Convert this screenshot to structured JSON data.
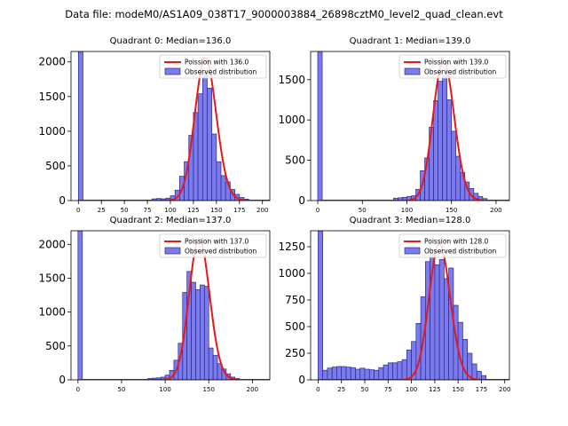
{
  "figure": {
    "title": "Data file: modeM0/AS1A09_038T17_9000003884_26898cztM0_level2_quad_clean.evt"
  },
  "colors": {
    "bar_fill": "#7b7bee",
    "bar_edge": "#2a2a8a",
    "poisson_line": "#e81818",
    "axis": "#000000"
  },
  "chart_data": [
    {
      "type": "bar",
      "title": "Quadrant 0: Median=136.0",
      "median": 136.0,
      "xlim": [
        -8,
        208
      ],
      "ylim": [
        0,
        2150
      ],
      "xticks": [
        0,
        25,
        50,
        75,
        100,
        125,
        150,
        175,
        200
      ],
      "yticks": [
        0,
        500,
        1000,
        1500,
        2000
      ],
      "bin_width": 5,
      "legend": {
        "line_label": "Poission with 136.0",
        "bar_label": "Observed distribution",
        "position": "upper-right"
      },
      "bins": [
        {
          "x": 0,
          "count": 2150
        },
        {
          "x": 80,
          "count": 25
        },
        {
          "x": 85,
          "count": 30
        },
        {
          "x": 90,
          "count": 25
        },
        {
          "x": 95,
          "count": 35
        },
        {
          "x": 100,
          "count": 70
        },
        {
          "x": 105,
          "count": 150
        },
        {
          "x": 110,
          "count": 350
        },
        {
          "x": 115,
          "count": 560
        },
        {
          "x": 120,
          "count": 940
        },
        {
          "x": 125,
          "count": 1270
        },
        {
          "x": 130,
          "count": 1540
        },
        {
          "x": 135,
          "count": 1850
        },
        {
          "x": 140,
          "count": 1620
        },
        {
          "x": 145,
          "count": 960
        },
        {
          "x": 150,
          "count": 560
        },
        {
          "x": 155,
          "count": 360
        },
        {
          "x": 160,
          "count": 270
        },
        {
          "x": 165,
          "count": 160
        },
        {
          "x": 170,
          "count": 90
        },
        {
          "x": 175,
          "count": 45
        },
        {
          "x": 180,
          "count": 20
        }
      ],
      "poisson_peak": 2050
    },
    {
      "type": "bar",
      "title": "Quadrant 1: Median=139.0",
      "median": 139.0,
      "xlim": [
        -8,
        215
      ],
      "ylim": [
        0,
        1850
      ],
      "xticks": [
        0,
        50,
        100,
        150,
        200
      ],
      "yticks": [
        0,
        500,
        1000,
        1500
      ],
      "bin_width": 5,
      "legend": {
        "line_label": "Poission with 139.0",
        "bar_label": "Observed distribution",
        "position": "upper-right"
      },
      "bins": [
        {
          "x": 0,
          "count": 1850
        },
        {
          "x": 85,
          "count": 30
        },
        {
          "x": 90,
          "count": 35
        },
        {
          "x": 95,
          "count": 40
        },
        {
          "x": 100,
          "count": 50
        },
        {
          "x": 105,
          "count": 60
        },
        {
          "x": 110,
          "count": 140
        },
        {
          "x": 115,
          "count": 370
        },
        {
          "x": 120,
          "count": 530
        },
        {
          "x": 125,
          "count": 910
        },
        {
          "x": 130,
          "count": 1240
        },
        {
          "x": 135,
          "count": 1480
        },
        {
          "x": 140,
          "count": 1550
        },
        {
          "x": 145,
          "count": 1250
        },
        {
          "x": 150,
          "count": 860
        },
        {
          "x": 155,
          "count": 550
        },
        {
          "x": 160,
          "count": 350
        },
        {
          "x": 165,
          "count": 230
        },
        {
          "x": 170,
          "count": 150
        },
        {
          "x": 175,
          "count": 90
        },
        {
          "x": 180,
          "count": 50
        },
        {
          "x": 185,
          "count": 25
        }
      ],
      "poisson_peak": 1740
    },
    {
      "type": "bar",
      "title": "Quadrant 2: Median=137.0",
      "median": 137.0,
      "xlim": [
        -8,
        220
      ],
      "ylim": [
        0,
        2200
      ],
      "xticks": [
        0,
        50,
        100,
        150,
        200
      ],
      "yticks": [
        0,
        500,
        1000,
        1500,
        2000
      ],
      "bin_width": 5,
      "legend": {
        "line_label": "Poission with 137.0",
        "bar_label": "Observed distribution",
        "position": "upper-right"
      },
      "bins": [
        {
          "x": 0,
          "count": 2200
        },
        {
          "x": 80,
          "count": 20
        },
        {
          "x": 85,
          "count": 25
        },
        {
          "x": 90,
          "count": 30
        },
        {
          "x": 95,
          "count": 40
        },
        {
          "x": 100,
          "count": 70
        },
        {
          "x": 105,
          "count": 140
        },
        {
          "x": 110,
          "count": 290
        },
        {
          "x": 115,
          "count": 540
        },
        {
          "x": 120,
          "count": 1290
        },
        {
          "x": 125,
          "count": 1600
        },
        {
          "x": 130,
          "count": 1440
        },
        {
          "x": 135,
          "count": 1330
        },
        {
          "x": 140,
          "count": 1400
        },
        {
          "x": 145,
          "count": 1380
        },
        {
          "x": 150,
          "count": 470
        },
        {
          "x": 155,
          "count": 360
        },
        {
          "x": 160,
          "count": 240
        },
        {
          "x": 165,
          "count": 160
        },
        {
          "x": 170,
          "count": 90
        },
        {
          "x": 175,
          "count": 40
        },
        {
          "x": 180,
          "count": 20
        }
      ],
      "poisson_peak": 2090
    },
    {
      "type": "bar",
      "title": "Quadrant 3: Median=128.0",
      "median": 128.0,
      "xlim": [
        -8,
        205
      ],
      "ylim": [
        0,
        1400
      ],
      "xticks": [
        0,
        25,
        50,
        75,
        100,
        125,
        150,
        175,
        200
      ],
      "yticks": [
        0,
        250,
        500,
        750,
        1000,
        1250
      ],
      "bin_width": 5,
      "legend": {
        "line_label": "Poission with 128.0",
        "bar_label": "Observed distribution",
        "position": "upper-right"
      },
      "bins": [
        {
          "x": 0,
          "count": 1400
        },
        {
          "x": 5,
          "count": 90
        },
        {
          "x": 10,
          "count": 110
        },
        {
          "x": 15,
          "count": 120
        },
        {
          "x": 20,
          "count": 125
        },
        {
          "x": 25,
          "count": 125
        },
        {
          "x": 30,
          "count": 120
        },
        {
          "x": 35,
          "count": 115
        },
        {
          "x": 40,
          "count": 100
        },
        {
          "x": 45,
          "count": 110
        },
        {
          "x": 50,
          "count": 100
        },
        {
          "x": 55,
          "count": 95
        },
        {
          "x": 60,
          "count": 90
        },
        {
          "x": 65,
          "count": 115
        },
        {
          "x": 70,
          "count": 140
        },
        {
          "x": 75,
          "count": 160
        },
        {
          "x": 80,
          "count": 160
        },
        {
          "x": 85,
          "count": 170
        },
        {
          "x": 90,
          "count": 190
        },
        {
          "x": 95,
          "count": 280
        },
        {
          "x": 100,
          "count": 360
        },
        {
          "x": 105,
          "count": 530
        },
        {
          "x": 110,
          "count": 780
        },
        {
          "x": 115,
          "count": 1110
        },
        {
          "x": 120,
          "count": 1180
        },
        {
          "x": 125,
          "count": 1080
        },
        {
          "x": 130,
          "count": 1130
        },
        {
          "x": 135,
          "count": 950
        },
        {
          "x": 140,
          "count": 1050
        },
        {
          "x": 145,
          "count": 700
        },
        {
          "x": 150,
          "count": 540
        },
        {
          "x": 155,
          "count": 380
        },
        {
          "x": 160,
          "count": 250
        },
        {
          "x": 165,
          "count": 150
        },
        {
          "x": 170,
          "count": 80
        },
        {
          "x": 175,
          "count": 40
        }
      ],
      "poisson_peak": 1280
    }
  ]
}
